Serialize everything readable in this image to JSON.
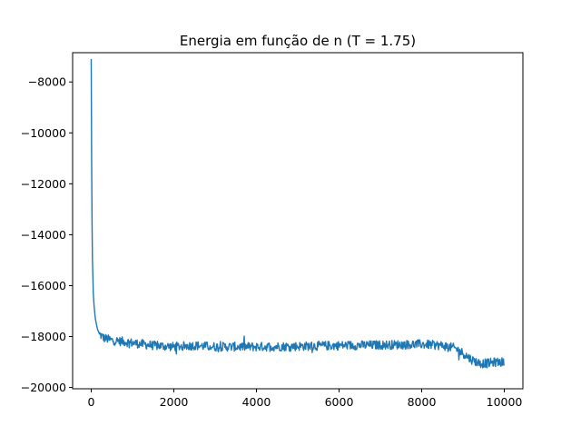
{
  "chart_data": {
    "type": "line",
    "title": "Energia em função de n (T = 1.75)",
    "xlabel": "",
    "ylabel": "",
    "xlim": [
      -450,
      10450
    ],
    "ylim": [
      -20050,
      -6850
    ],
    "xticks": [
      0,
      2000,
      4000,
      6000,
      8000,
      10000
    ],
    "xtick_labels": [
      "0",
      "2000",
      "4000",
      "6000",
      "8000",
      "10000"
    ],
    "yticks": [
      -20000,
      -18000,
      -16000,
      -14000,
      -12000,
      -10000,
      -8000
    ],
    "ytick_labels": [
      "−20000",
      "−18000",
      "−16000",
      "−14000",
      "−12000",
      "−10000",
      "−8000"
    ],
    "grid": false,
    "legend": "none",
    "series": [
      {
        "color": "#1f77b4",
        "noise_amplitude": 180,
        "points": [
          [
            0,
            -7100
          ],
          [
            10,
            -11000
          ],
          [
            20,
            -13500
          ],
          [
            30,
            -15000
          ],
          [
            40,
            -15600
          ],
          [
            50,
            -16300
          ],
          [
            70,
            -16800
          ],
          [
            100,
            -17300
          ],
          [
            150,
            -17700
          ],
          [
            200,
            -17900
          ],
          [
            300,
            -18050
          ],
          [
            500,
            -18150
          ],
          [
            800,
            -18200
          ],
          [
            1000,
            -18250
          ],
          [
            1500,
            -18350
          ],
          [
            2000,
            -18400
          ],
          [
            2500,
            -18350
          ],
          [
            3000,
            -18400
          ],
          [
            4000,
            -18400
          ],
          [
            5000,
            -18380
          ],
          [
            6000,
            -18350
          ],
          [
            7000,
            -18330
          ],
          [
            8000,
            -18300
          ],
          [
            8500,
            -18350
          ],
          [
            8800,
            -18450
          ],
          [
            9000,
            -18650
          ],
          [
            9200,
            -18900
          ],
          [
            9400,
            -19050
          ],
          [
            9600,
            -19050
          ],
          [
            9800,
            -19000
          ],
          [
            10000,
            -19000
          ]
        ]
      }
    ]
  }
}
